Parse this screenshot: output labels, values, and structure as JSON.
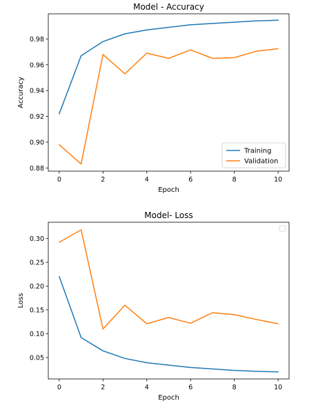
{
  "chart_data": [
    {
      "type": "line",
      "title": "Model - Accuracy",
      "xlabel": "Epoch",
      "ylabel": "Accuracy",
      "xlim": [
        -0.5,
        10.5
      ],
      "ylim": [
        0.8775,
        0.9995
      ],
      "xticks": [
        0,
        2,
        4,
        6,
        8,
        10
      ],
      "xtick_labels": [
        "0",
        "2",
        "4",
        "6",
        "8",
        "10"
      ],
      "yticks": [
        0.88,
        0.9,
        0.92,
        0.94,
        0.96,
        0.98
      ],
      "ytick_labels": [
        "0.88",
        "0.90",
        "0.92",
        "0.94",
        "0.96",
        "0.98"
      ],
      "grid": false,
      "legend": {
        "show": true,
        "placement": "lower-right"
      },
      "x": [
        0,
        1,
        2,
        3,
        4,
        5,
        6,
        7,
        8,
        9,
        10
      ],
      "series": [
        {
          "name": "Training",
          "color": "#1f77b4",
          "values": [
            0.922,
            0.967,
            0.978,
            0.984,
            0.987,
            0.989,
            0.991,
            0.992,
            0.993,
            0.994,
            0.9945
          ]
        },
        {
          "name": "Validation",
          "color": "#ff7f0e",
          "values": [
            0.898,
            0.883,
            0.968,
            0.953,
            0.969,
            0.965,
            0.9715,
            0.965,
            0.9655,
            0.9705,
            0.9725
          ]
        }
      ]
    },
    {
      "type": "line",
      "title": "Model- Loss",
      "xlabel": "Epoch",
      "ylabel": "Loss",
      "xlim": [
        -0.5,
        10.5
      ],
      "ylim": [
        0.005,
        0.334
      ],
      "xticks": [
        0,
        2,
        4,
        6,
        8,
        10
      ],
      "xtick_labels": [
        "0",
        "2",
        "4",
        "6",
        "8",
        "10"
      ],
      "yticks": [
        0.05,
        0.1,
        0.15,
        0.2,
        0.25,
        0.3
      ],
      "ytick_labels": [
        "0.05",
        "0.10",
        "0.15",
        "0.20",
        "0.25",
        "0.30"
      ],
      "grid": false,
      "legend": {
        "show": true,
        "placement": "top-right",
        "empty": true
      },
      "x": [
        0,
        1,
        2,
        3,
        4,
        5,
        6,
        7,
        8,
        9,
        10
      ],
      "series": [
        {
          "color": "#1f77b4",
          "values": [
            0.22,
            0.092,
            0.064,
            0.048,
            0.039,
            0.034,
            0.029,
            0.026,
            0.023,
            0.021,
            0.02
          ]
        },
        {
          "color": "#ff7f0e",
          "values": [
            0.292,
            0.318,
            0.11,
            0.16,
            0.121,
            0.134,
            0.122,
            0.144,
            0.14,
            0.13,
            0.121
          ]
        }
      ]
    }
  ]
}
